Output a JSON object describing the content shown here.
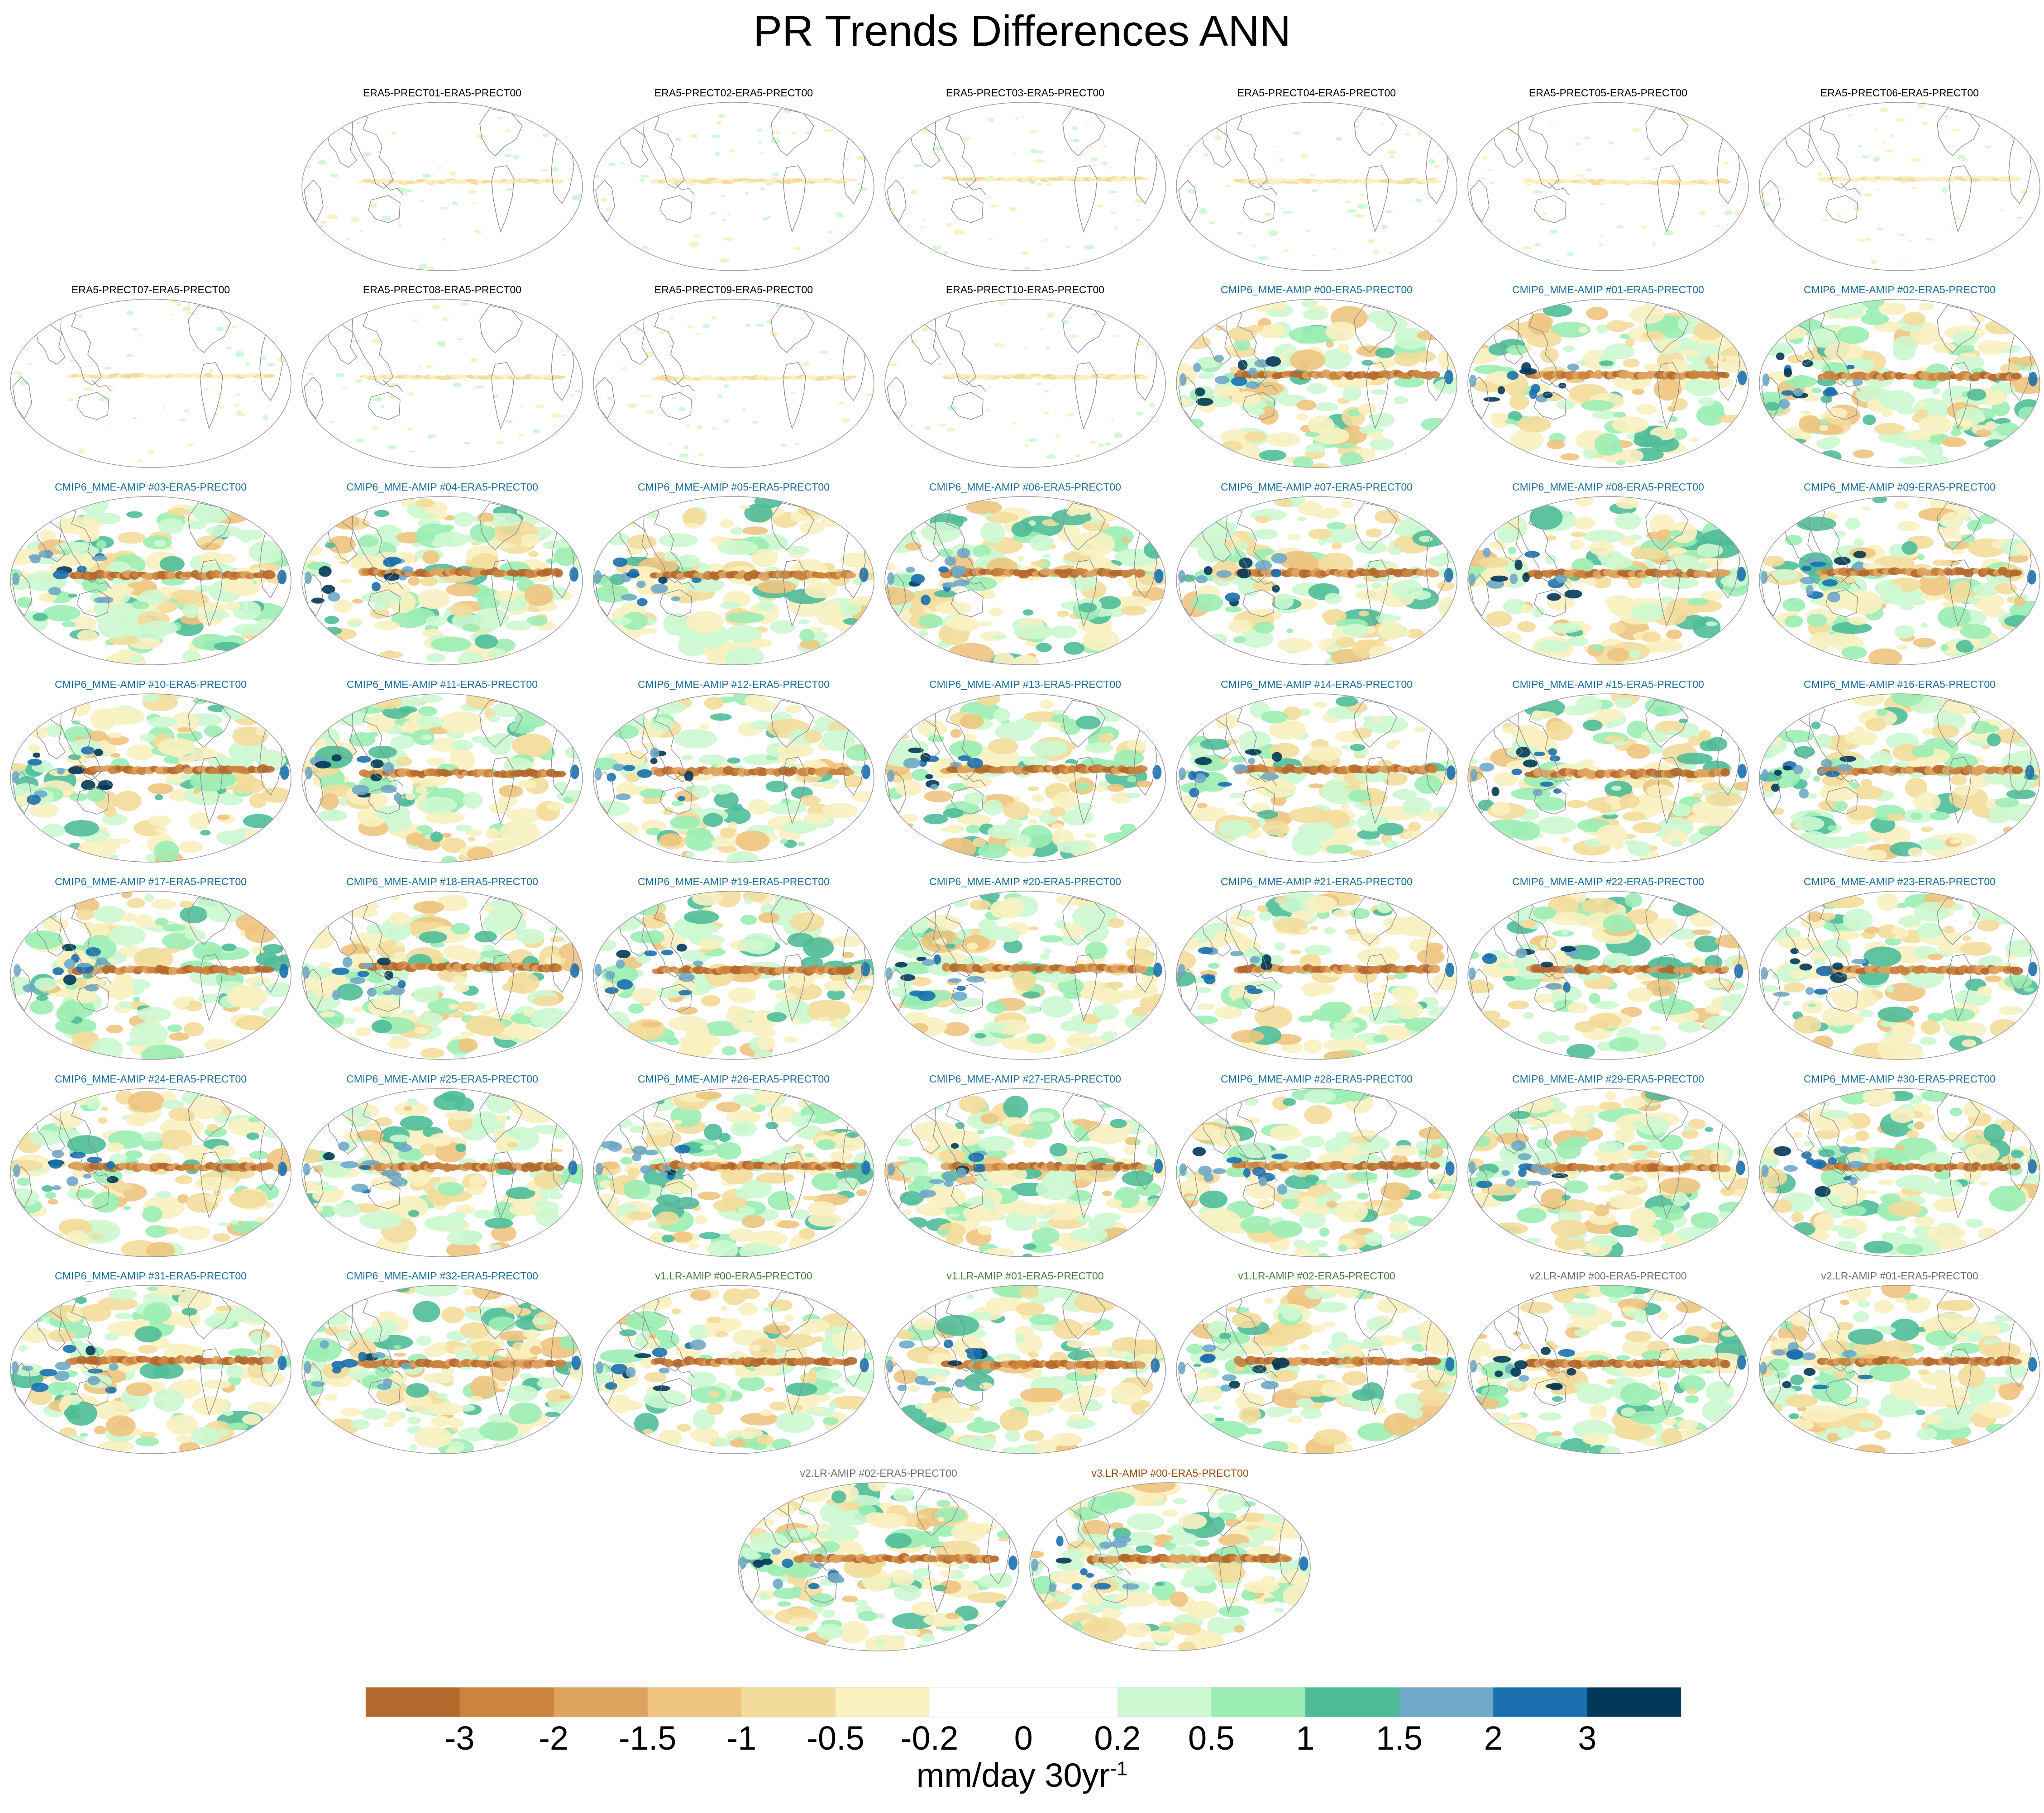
{
  "figure": {
    "title": "PR Trends Differences ANN"
  },
  "colors": {
    "era5": "#000000",
    "cmip6": "#1a6e9c",
    "v1": "#4e7a45",
    "v2": "#6e6e6e",
    "v3": "#9a4a0c",
    "coast": "#8a8a8a",
    "outline": "#9a9a9a"
  },
  "chart_data": {
    "type": "heatmap",
    "projection": "Robinson (global, Pacific-centred)",
    "variable": "precipitation trend difference vs ERA5-PRECT00",
    "season": "ANN",
    "colorbar": {
      "boundaries": [
        -3,
        -2,
        -1.5,
        -1,
        -0.5,
        -0.2,
        0,
        0.2,
        0.5,
        1,
        1.5,
        2,
        3
      ],
      "tick_labels": [
        "-3",
        "-2",
        "-1.5",
        "-1",
        "-0.5",
        "-0.2",
        "0",
        "0.2",
        "0.5",
        "1",
        "1.5",
        "2",
        "3"
      ],
      "colors": [
        "#b5682c",
        "#cb833e",
        "#dea35f",
        "#eec47f",
        "#f3dc9b",
        "#faf1c1",
        "#ffffff",
        "#ffffff",
        "#cdf8d1",
        "#9bedb4",
        "#4fbc98",
        "#6fa9c8",
        "#1a70ae",
        "#023858"
      ],
      "unit": "mm/day 30yr",
      "unit_exponent": "-1"
    },
    "panels": [
      {
        "label": "ERA5-PRECT01-ERA5-PRECT00",
        "group": "era5",
        "intensity": 0.12
      },
      {
        "label": "ERA5-PRECT02-ERA5-PRECT00",
        "group": "era5",
        "intensity": 0.14
      },
      {
        "label": "ERA5-PRECT03-ERA5-PRECT00",
        "group": "era5",
        "intensity": 0.14
      },
      {
        "label": "ERA5-PRECT04-ERA5-PRECT00",
        "group": "era5",
        "intensity": 0.13
      },
      {
        "label": "ERA5-PRECT05-ERA5-PRECT00",
        "group": "era5",
        "intensity": 0.13
      },
      {
        "label": "ERA5-PRECT06-ERA5-PRECT00",
        "group": "era5",
        "intensity": 0.13
      },
      {
        "label": "ERA5-PRECT07-ERA5-PRECT00",
        "group": "era5",
        "intensity": 0.14
      },
      {
        "label": "ERA5-PRECT08-ERA5-PRECT00",
        "group": "era5",
        "intensity": 0.15
      },
      {
        "label": "ERA5-PRECT09-ERA5-PRECT00",
        "group": "era5",
        "intensity": 0.14
      },
      {
        "label": "ERA5-PRECT10-ERA5-PRECT00",
        "group": "era5",
        "intensity": 0.14
      },
      {
        "label": "CMIP6_MME-AMIP  #00-ERA5-PRECT00",
        "group": "cmip6",
        "intensity": 0.85
      },
      {
        "label": "CMIP6_MME-AMIP  #01-ERA5-PRECT00",
        "group": "cmip6",
        "intensity": 0.9
      },
      {
        "label": "CMIP6_MME-AMIP  #02-ERA5-PRECT00",
        "group": "cmip6",
        "intensity": 1.0
      },
      {
        "label": "CMIP6_MME-AMIP  #03-ERA5-PRECT00",
        "group": "cmip6",
        "intensity": 1.0
      },
      {
        "label": "CMIP6_MME-AMIP  #04-ERA5-PRECT00",
        "group": "cmip6",
        "intensity": 0.9
      },
      {
        "label": "CMIP6_MME-AMIP  #05-ERA5-PRECT00",
        "group": "cmip6",
        "intensity": 0.9
      },
      {
        "label": "CMIP6_MME-AMIP  #06-ERA5-PRECT00",
        "group": "cmip6",
        "intensity": 0.95
      },
      {
        "label": "CMIP6_MME-AMIP  #07-ERA5-PRECT00",
        "group": "cmip6",
        "intensity": 0.85
      },
      {
        "label": "CMIP6_MME-AMIP  #08-ERA5-PRECT00",
        "group": "cmip6",
        "intensity": 0.85
      },
      {
        "label": "CMIP6_MME-AMIP  #09-ERA5-PRECT00",
        "group": "cmip6",
        "intensity": 0.9
      },
      {
        "label": "CMIP6_MME-AMIP  #10-ERA5-PRECT00",
        "group": "cmip6",
        "intensity": 0.9
      },
      {
        "label": "CMIP6_MME-AMIP  #11-ERA5-PRECT00",
        "group": "cmip6",
        "intensity": 0.9
      },
      {
        "label": "CMIP6_MME-AMIP  #12-ERA5-PRECT00",
        "group": "cmip6",
        "intensity": 0.8
      },
      {
        "label": "CMIP6_MME-AMIP  #13-ERA5-PRECT00",
        "group": "cmip6",
        "intensity": 0.85
      },
      {
        "label": "CMIP6_MME-AMIP  #14-ERA5-PRECT00",
        "group": "cmip6",
        "intensity": 0.85
      },
      {
        "label": "CMIP6_MME-AMIP  #15-ERA5-PRECT00",
        "group": "cmip6",
        "intensity": 0.85
      },
      {
        "label": "CMIP6_MME-AMIP  #16-ERA5-PRECT00",
        "group": "cmip6",
        "intensity": 0.9
      },
      {
        "label": "CMIP6_MME-AMIP  #17-ERA5-PRECT00",
        "group": "cmip6",
        "intensity": 0.85
      },
      {
        "label": "CMIP6_MME-AMIP  #18-ERA5-PRECT00",
        "group": "cmip6",
        "intensity": 0.95
      },
      {
        "label": "CMIP6_MME-AMIP  #19-ERA5-PRECT00",
        "group": "cmip6",
        "intensity": 0.85
      },
      {
        "label": "CMIP6_MME-AMIP  #20-ERA5-PRECT00",
        "group": "cmip6",
        "intensity": 0.9
      },
      {
        "label": "CMIP6_MME-AMIP  #21-ERA5-PRECT00",
        "group": "cmip6",
        "intensity": 0.8
      },
      {
        "label": "CMIP6_MME-AMIP  #22-ERA5-PRECT00",
        "group": "cmip6",
        "intensity": 0.8
      },
      {
        "label": "CMIP6_MME-AMIP  #23-ERA5-PRECT00",
        "group": "cmip6",
        "intensity": 0.85
      },
      {
        "label": "CMIP6_MME-AMIP  #24-ERA5-PRECT00",
        "group": "cmip6",
        "intensity": 0.8
      },
      {
        "label": "CMIP6_MME-AMIP  #25-ERA5-PRECT00",
        "group": "cmip6",
        "intensity": 0.85
      },
      {
        "label": "CMIP6_MME-AMIP  #26-ERA5-PRECT00",
        "group": "cmip6",
        "intensity": 0.9
      },
      {
        "label": "CMIP6_MME-AMIP  #27-ERA5-PRECT00",
        "group": "cmip6",
        "intensity": 0.9
      },
      {
        "label": "CMIP6_MME-AMIP  #28-ERA5-PRECT00",
        "group": "cmip6",
        "intensity": 0.85
      },
      {
        "label": "CMIP6_MME-AMIP  #29-ERA5-PRECT00",
        "group": "cmip6",
        "intensity": 0.85
      },
      {
        "label": "CMIP6_MME-AMIP  #30-ERA5-PRECT00",
        "group": "cmip6",
        "intensity": 0.95
      },
      {
        "label": "CMIP6_MME-AMIP  #31-ERA5-PRECT00",
        "group": "cmip6",
        "intensity": 0.85
      },
      {
        "label": "CMIP6_MME-AMIP  #32-ERA5-PRECT00",
        "group": "cmip6",
        "intensity": 0.9
      },
      {
        "label": "v1.LR-AMIP  #00-ERA5-PRECT00",
        "group": "v1",
        "intensity": 0.8
      },
      {
        "label": "v1.LR-AMIP  #01-ERA5-PRECT00",
        "group": "v1",
        "intensity": 0.8
      },
      {
        "label": "v1.LR-AMIP  #02-ERA5-PRECT00",
        "group": "v1",
        "intensity": 0.8
      },
      {
        "label": "v2.LR-AMIP  #00-ERA5-PRECT00",
        "group": "v2",
        "intensity": 0.85
      },
      {
        "label": "v2.LR-AMIP  #01-ERA5-PRECT00",
        "group": "v2",
        "intensity": 0.8
      },
      {
        "label": "v2.LR-AMIP  #02-ERA5-PRECT00",
        "group": "v2",
        "intensity": 0.85
      },
      {
        "label": "v3.LR-AMIP  #00-ERA5-PRECT00",
        "group": "v3",
        "intensity": 0.9
      }
    ]
  }
}
